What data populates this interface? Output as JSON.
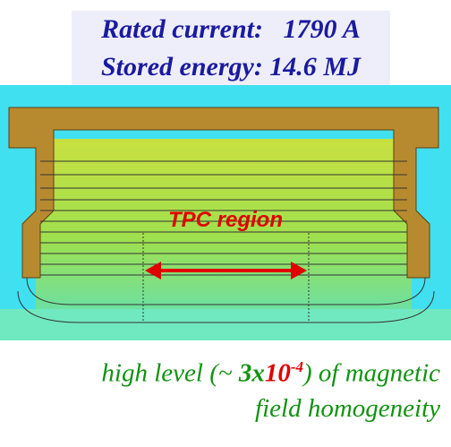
{
  "header": {
    "lines": [
      "Rated current:   1790 A",
      "Stored energy: 14.6 MJ"
    ]
  },
  "figure": {
    "label": "TPC region"
  },
  "caption": {
    "line1": {
      "before": "high level (~ ",
      "bold": "3x",
      "base": "10",
      "exponent": "-4",
      "after": ") of magnetic"
    },
    "line2": "field homogeneity"
  }
}
